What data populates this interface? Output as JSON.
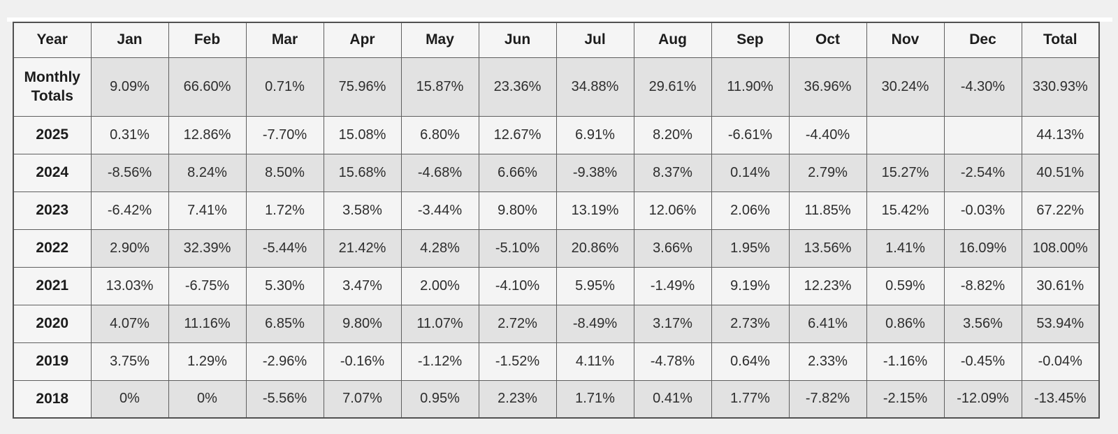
{
  "chart_data": {
    "type": "table",
    "columns": [
      "Year",
      "Jan",
      "Feb",
      "Mar",
      "Apr",
      "May",
      "Jun",
      "Jul",
      "Aug",
      "Sep",
      "Oct",
      "Nov",
      "Dec",
      "Total"
    ],
    "rows": [
      {
        "label": "Monthly Totals",
        "shaded": true,
        "values": [
          "9.09%",
          "66.60%",
          "0.71%",
          "75.96%",
          "15.87%",
          "23.36%",
          "34.88%",
          "29.61%",
          "11.90%",
          "36.96%",
          "30.24%",
          "-4.30%",
          "330.93%"
        ]
      },
      {
        "label": "2025",
        "shaded": false,
        "values": [
          "0.31%",
          "12.86%",
          "-7.70%",
          "15.08%",
          "6.80%",
          "12.67%",
          "6.91%",
          "8.20%",
          "-6.61%",
          "-4.40%",
          "",
          "",
          "44.13%"
        ]
      },
      {
        "label": "2024",
        "shaded": true,
        "values": [
          "-8.56%",
          "8.24%",
          "8.50%",
          "15.68%",
          "-4.68%",
          "6.66%",
          "-9.38%",
          "8.37%",
          "0.14%",
          "2.79%",
          "15.27%",
          "-2.54%",
          "40.51%"
        ]
      },
      {
        "label": "2023",
        "shaded": false,
        "values": [
          "-6.42%",
          "7.41%",
          "1.72%",
          "3.58%",
          "-3.44%",
          "9.80%",
          "13.19%",
          "12.06%",
          "2.06%",
          "11.85%",
          "15.42%",
          "-0.03%",
          "67.22%"
        ]
      },
      {
        "label": "2022",
        "shaded": true,
        "values": [
          "2.90%",
          "32.39%",
          "-5.44%",
          "21.42%",
          "4.28%",
          "-5.10%",
          "20.86%",
          "3.66%",
          "1.95%",
          "13.56%",
          "1.41%",
          "16.09%",
          "108.00%"
        ]
      },
      {
        "label": "2021",
        "shaded": false,
        "values": [
          "13.03%",
          "-6.75%",
          "5.30%",
          "3.47%",
          "2.00%",
          "-4.10%",
          "5.95%",
          "-1.49%",
          "9.19%",
          "12.23%",
          "0.59%",
          "-8.82%",
          "30.61%"
        ]
      },
      {
        "label": "2020",
        "shaded": true,
        "values": [
          "4.07%",
          "11.16%",
          "6.85%",
          "9.80%",
          "11.07%",
          "2.72%",
          "-8.49%",
          "3.17%",
          "2.73%",
          "6.41%",
          "0.86%",
          "3.56%",
          "53.94%"
        ]
      },
      {
        "label": "2019",
        "shaded": false,
        "values": [
          "3.75%",
          "1.29%",
          "-2.96%",
          "-0.16%",
          "-1.12%",
          "-1.52%",
          "4.11%",
          "-4.78%",
          "0.64%",
          "2.33%",
          "-1.16%",
          "-0.45%",
          "-0.04%"
        ]
      },
      {
        "label": "2018",
        "shaded": true,
        "values": [
          "0%",
          "0%",
          "-5.56%",
          "7.07%",
          "0.95%",
          "2.23%",
          "1.71%",
          "0.41%",
          "1.77%",
          "-7.82%",
          "-2.15%",
          "-12.09%",
          "-13.45%"
        ]
      }
    ],
    "layout": {
      "page_background": "#f0f0f0",
      "header_background": "#f5f5f5",
      "shaded_row_background": "#e2e2e2",
      "light_row_background": "#f4f4f4",
      "border_color": "#5f5f5f",
      "text_color": "#2d2d2d"
    }
  }
}
